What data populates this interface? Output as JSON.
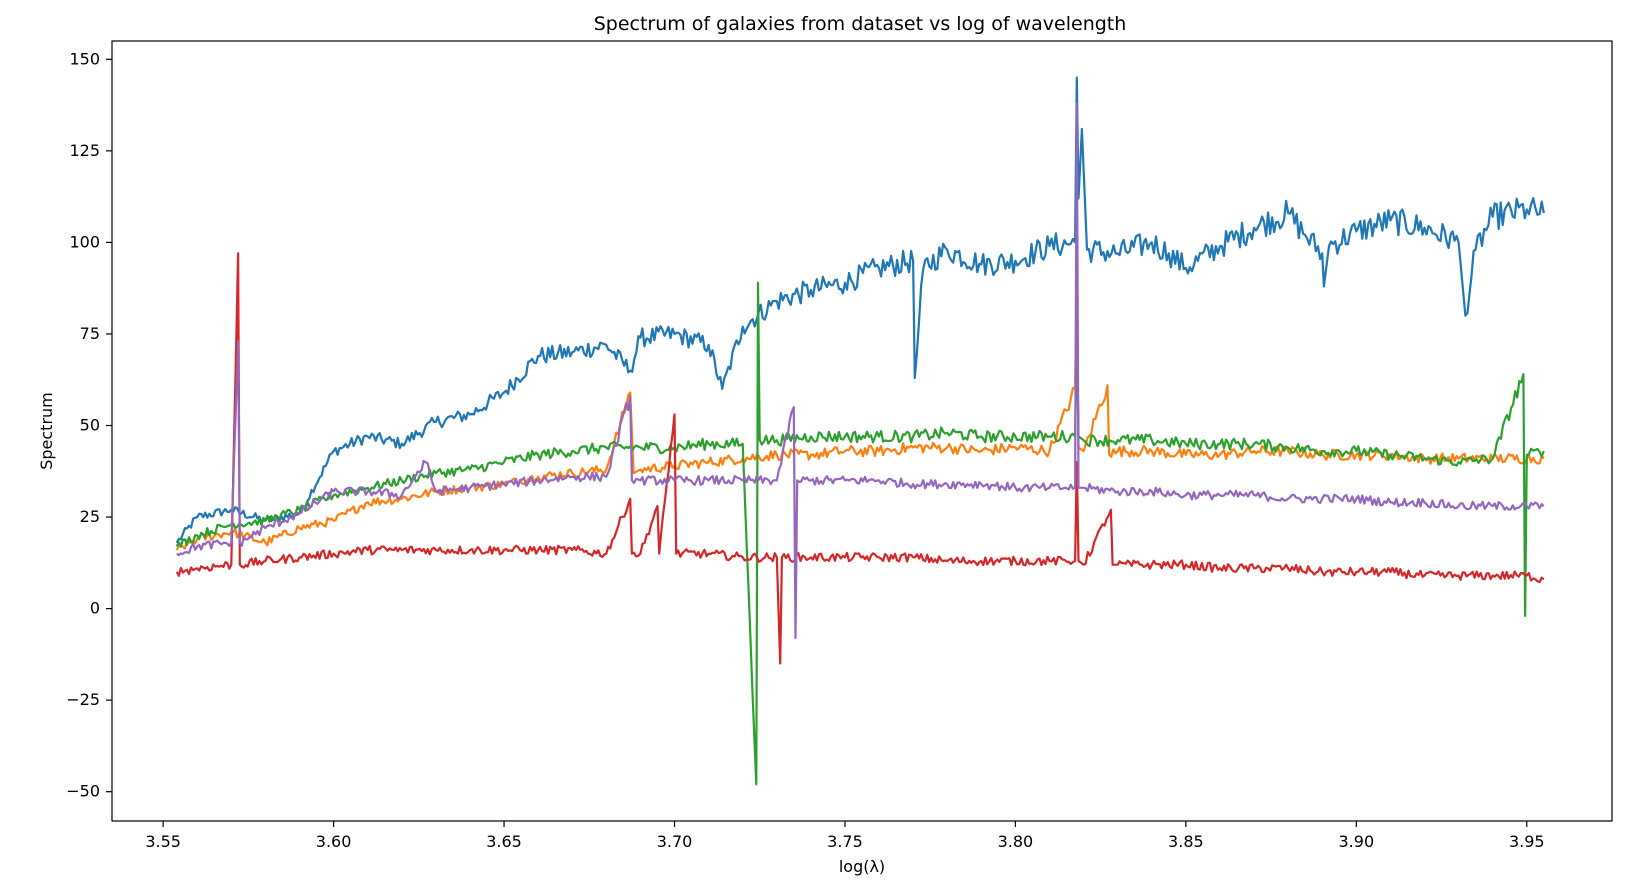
{
  "chart_data": {
    "type": "line",
    "title": "Spectrum of galaxies from dataset vs log of wavelength",
    "xlabel": "log(λ)",
    "ylabel": "Spectrum",
    "xlim": [
      3.535,
      3.975
    ],
    "ylim": [
      -58,
      155
    ],
    "x_ticks": [
      3.55,
      3.6,
      3.65,
      3.7,
      3.75,
      3.8,
      3.85,
      3.9,
      3.95
    ],
    "x_tick_labels": [
      "3.55",
      "3.60",
      "3.65",
      "3.70",
      "3.75",
      "3.80",
      "3.85",
      "3.90",
      "3.95"
    ],
    "y_ticks": [
      -50,
      -25,
      0,
      25,
      50,
      75,
      100,
      125,
      150
    ],
    "y_tick_labels": [
      "−50",
      "−25",
      "0",
      "25",
      "50",
      "75",
      "100",
      "125",
      "150"
    ],
    "grid": false,
    "legend": "none",
    "series": [
      {
        "color": "#1f77b4",
        "points": [
          [
            3.554,
            18
          ],
          [
            3.56,
            25
          ],
          [
            3.57,
            27
          ],
          [
            3.58,
            24
          ],
          [
            3.59,
            26
          ],
          [
            3.6,
            43
          ],
          [
            3.61,
            47
          ],
          [
            3.62,
            45
          ],
          [
            3.63,
            51
          ],
          [
            3.64,
            53
          ],
          [
            3.65,
            59
          ],
          [
            3.66,
            69
          ],
          [
            3.67,
            70
          ],
          [
            3.68,
            72
          ],
          [
            3.687,
            65
          ],
          [
            3.69,
            74
          ],
          [
            3.7,
            75
          ],
          [
            3.71,
            72
          ],
          [
            3.714,
            60
          ],
          [
            3.72,
            77
          ],
          [
            3.73,
            84
          ],
          [
            3.74,
            87
          ],
          [
            3.75,
            89
          ],
          [
            3.76,
            93
          ],
          [
            3.77,
            95
          ],
          [
            3.7705,
            63
          ],
          [
            3.773,
            93
          ],
          [
            3.78,
            98
          ],
          [
            3.79,
            94
          ],
          [
            3.8,
            95
          ],
          [
            3.81,
            99
          ],
          [
            3.8175,
            100
          ],
          [
            3.818,
            145
          ],
          [
            3.8185,
            112
          ],
          [
            3.8195,
            131
          ],
          [
            3.821,
            98
          ],
          [
            3.83,
            97
          ],
          [
            3.84,
            100
          ],
          [
            3.845,
            97
          ],
          [
            3.85,
            93
          ],
          [
            3.86,
            99
          ],
          [
            3.87,
            104
          ],
          [
            3.88,
            108
          ],
          [
            3.885,
            102
          ],
          [
            3.89,
            97
          ],
          [
            3.8905,
            88
          ],
          [
            3.892,
            99
          ],
          [
            3.9,
            103
          ],
          [
            3.91,
            106
          ],
          [
            3.92,
            104
          ],
          [
            3.93,
            100
          ],
          [
            3.932,
            80
          ],
          [
            3.935,
            98
          ],
          [
            3.94,
            107
          ],
          [
            3.95,
            109
          ],
          [
            3.955,
            108
          ]
        ]
      },
      {
        "color": "#ff7f0e",
        "points": [
          [
            3.554,
            16
          ],
          [
            3.56,
            19
          ],
          [
            3.57,
            21
          ],
          [
            3.58,
            18
          ],
          [
            3.59,
            22
          ],
          [
            3.6,
            24
          ],
          [
            3.61,
            29
          ],
          [
            3.62,
            30
          ],
          [
            3.63,
            32
          ],
          [
            3.64,
            33
          ],
          [
            3.65,
            34
          ],
          [
            3.66,
            36
          ],
          [
            3.67,
            37
          ],
          [
            3.68,
            38
          ],
          [
            3.687,
            59
          ],
          [
            3.688,
            37
          ],
          [
            3.69,
            38
          ],
          [
            3.7,
            39
          ],
          [
            3.71,
            40
          ],
          [
            3.72,
            41
          ],
          [
            3.73,
            42
          ],
          [
            3.74,
            42
          ],
          [
            3.75,
            43
          ],
          [
            3.76,
            43
          ],
          [
            3.77,
            44
          ],
          [
            3.78,
            44
          ],
          [
            3.79,
            43
          ],
          [
            3.8,
            44
          ],
          [
            3.81,
            43
          ],
          [
            3.8175,
            60
          ],
          [
            3.818,
            91
          ],
          [
            3.8185,
            44
          ],
          [
            3.82,
            43
          ],
          [
            3.827,
            61
          ],
          [
            3.8275,
            42
          ],
          [
            3.83,
            43
          ],
          [
            3.84,
            43
          ],
          [
            3.85,
            42
          ],
          [
            3.86,
            42
          ],
          [
            3.87,
            43
          ],
          [
            3.88,
            43
          ],
          [
            3.89,
            42
          ],
          [
            3.9,
            42
          ],
          [
            3.91,
            42
          ],
          [
            3.92,
            41
          ],
          [
            3.93,
            41
          ],
          [
            3.94,
            41
          ],
          [
            3.95,
            41
          ],
          [
            3.955,
            41
          ]
        ]
      },
      {
        "color": "#2ca02c",
        "points": [
          [
            3.554,
            17
          ],
          [
            3.56,
            20
          ],
          [
            3.57,
            23
          ],
          [
            3.58,
            24
          ],
          [
            3.59,
            27
          ],
          [
            3.6,
            31
          ],
          [
            3.61,
            33
          ],
          [
            3.62,
            35
          ],
          [
            3.63,
            37
          ],
          [
            3.64,
            38
          ],
          [
            3.65,
            40
          ],
          [
            3.66,
            42
          ],
          [
            3.67,
            43
          ],
          [
            3.68,
            44
          ],
          [
            3.69,
            44
          ],
          [
            3.7,
            44
          ],
          [
            3.71,
            45
          ],
          [
            3.72,
            45
          ],
          [
            3.724,
            -48
          ],
          [
            3.7245,
            89
          ],
          [
            3.725,
            46
          ],
          [
            3.73,
            46
          ],
          [
            3.74,
            47
          ],
          [
            3.75,
            47
          ],
          [
            3.76,
            47
          ],
          [
            3.77,
            47
          ],
          [
            3.78,
            48
          ],
          [
            3.79,
            47
          ],
          [
            3.8,
            47
          ],
          [
            3.81,
            47
          ],
          [
            3.8175,
            47
          ],
          [
            3.818,
            76
          ],
          [
            3.8185,
            47
          ],
          [
            3.82,
            46
          ],
          [
            3.83,
            46
          ],
          [
            3.84,
            46
          ],
          [
            3.85,
            45
          ],
          [
            3.86,
            45
          ],
          [
            3.87,
            45
          ],
          [
            3.88,
            44
          ],
          [
            3.89,
            43
          ],
          [
            3.9,
            43
          ],
          [
            3.91,
            42
          ],
          [
            3.92,
            41
          ],
          [
            3.93,
            40
          ],
          [
            3.94,
            41
          ],
          [
            3.949,
            64
          ],
          [
            3.9495,
            -2
          ],
          [
            3.95,
            42
          ],
          [
            3.955,
            43
          ]
        ]
      },
      {
        "color": "#d62728",
        "points": [
          [
            3.554,
            10
          ],
          [
            3.56,
            11
          ],
          [
            3.57,
            12
          ],
          [
            3.572,
            97
          ],
          [
            3.5725,
            12
          ],
          [
            3.58,
            13
          ],
          [
            3.59,
            14
          ],
          [
            3.6,
            15
          ],
          [
            3.61,
            16
          ],
          [
            3.62,
            16
          ],
          [
            3.63,
            16
          ],
          [
            3.64,
            16
          ],
          [
            3.65,
            16
          ],
          [
            3.66,
            16
          ],
          [
            3.67,
            16
          ],
          [
            3.68,
            15
          ],
          [
            3.687,
            30
          ],
          [
            3.6875,
            15
          ],
          [
            3.69,
            15
          ],
          [
            3.695,
            28
          ],
          [
            3.6955,
            15
          ],
          [
            3.7,
            53
          ],
          [
            3.7005,
            15
          ],
          [
            3.71,
            15
          ],
          [
            3.72,
            14
          ],
          [
            3.73,
            14
          ],
          [
            3.731,
            -15
          ],
          [
            3.7315,
            14
          ],
          [
            3.74,
            14
          ],
          [
            3.75,
            14
          ],
          [
            3.76,
            14
          ],
          [
            3.77,
            14
          ],
          [
            3.78,
            13
          ],
          [
            3.79,
            13
          ],
          [
            3.8,
            13
          ],
          [
            3.81,
            13
          ],
          [
            3.8175,
            13
          ],
          [
            3.818,
            40
          ],
          [
            3.8185,
            13
          ],
          [
            3.82,
            12
          ],
          [
            3.828,
            27
          ],
          [
            3.8285,
            12
          ],
          [
            3.83,
            12
          ],
          [
            3.84,
            12
          ],
          [
            3.85,
            12
          ],
          [
            3.86,
            11
          ],
          [
            3.87,
            11
          ],
          [
            3.88,
            11
          ],
          [
            3.89,
            10
          ],
          [
            3.9,
            10
          ],
          [
            3.91,
            10
          ],
          [
            3.92,
            9
          ],
          [
            3.93,
            9
          ],
          [
            3.94,
            9
          ],
          [
            3.95,
            9
          ],
          [
            3.955,
            8
          ]
        ]
      },
      {
        "color": "#9467bd",
        "points": [
          [
            3.554,
            15
          ],
          [
            3.56,
            17
          ],
          [
            3.57,
            18
          ],
          [
            3.572,
            73
          ],
          [
            3.5725,
            18
          ],
          [
            3.58,
            22
          ],
          [
            3.59,
            26
          ],
          [
            3.6,
            32
          ],
          [
            3.61,
            32
          ],
          [
            3.62,
            31
          ],
          [
            3.627,
            40
          ],
          [
            3.63,
            32
          ],
          [
            3.64,
            33
          ],
          [
            3.65,
            34
          ],
          [
            3.66,
            35
          ],
          [
            3.67,
            36
          ],
          [
            3.68,
            36
          ],
          [
            3.687,
            58
          ],
          [
            3.6875,
            35
          ],
          [
            3.69,
            35
          ],
          [
            3.7,
            35
          ],
          [
            3.71,
            35
          ],
          [
            3.72,
            35
          ],
          [
            3.73,
            35
          ],
          [
            3.735,
            55
          ],
          [
            3.7355,
            -8
          ],
          [
            3.736,
            35
          ],
          [
            3.74,
            35
          ],
          [
            3.75,
            35
          ],
          [
            3.76,
            35
          ],
          [
            3.77,
            34
          ],
          [
            3.78,
            34
          ],
          [
            3.79,
            34
          ],
          [
            3.8,
            33
          ],
          [
            3.81,
            33
          ],
          [
            3.8175,
            33
          ],
          [
            3.818,
            138
          ],
          [
            3.8185,
            33
          ],
          [
            3.82,
            33
          ],
          [
            3.83,
            32
          ],
          [
            3.84,
            32
          ],
          [
            3.85,
            31
          ],
          [
            3.86,
            31
          ],
          [
            3.87,
            31
          ],
          [
            3.88,
            30
          ],
          [
            3.89,
            30
          ],
          [
            3.9,
            30
          ],
          [
            3.91,
            29
          ],
          [
            3.92,
            29
          ],
          [
            3.93,
            28
          ],
          [
            3.94,
            28
          ],
          [
            3.95,
            28
          ],
          [
            3.955,
            28
          ]
        ]
      }
    ]
  }
}
